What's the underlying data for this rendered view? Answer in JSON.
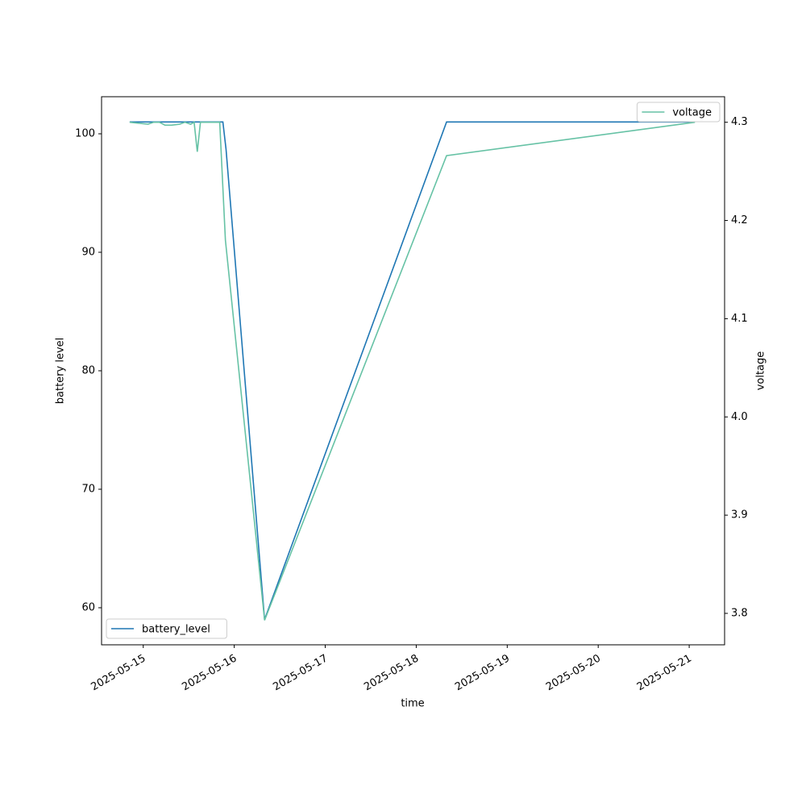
{
  "chart_data": {
    "type": "line",
    "x_label": "time",
    "y_label": "battery level",
    "y2_label": "voltage",
    "xlim": [
      "2025-05-14T13:00",
      "2025-05-21T09:20"
    ],
    "xticks": [
      "2025-05-15",
      "2025-05-16",
      "2025-05-17",
      "2025-05-18",
      "2025-05-19",
      "2025-05-20",
      "2025-05-21"
    ],
    "ylim": [
      56.87,
      103.13
    ],
    "yticks": [
      60,
      70,
      80,
      90,
      100
    ],
    "y2lim": [
      3.768,
      4.326
    ],
    "y2ticks": [
      3.8,
      3.9,
      {
        "value": 4,
        "label": "4.0"
      },
      4.1,
      4.2,
      4.3
    ],
    "series": [
      {
        "name": "battery_level",
        "color": "#1f77b4",
        "legend": "lower left",
        "x": [
          "2025-05-14T20:25",
          "2025-05-15T21:00",
          "2025-05-15T21:50",
          "2025-05-16T08:00",
          "2025-05-18T08:00",
          "2025-05-21T01:30"
        ],
        "values": [
          101,
          101,
          98.7,
          59,
          101,
          101
        ]
      },
      {
        "name": "voltage",
        "color": "#66c2a5",
        "axis": "y2",
        "legend": "upper right",
        "x": [
          "2025-05-14T20:25",
          "2025-05-15T01:15",
          "2025-05-15T02:45",
          "2025-05-15T04:15",
          "2025-05-15T05:45",
          "2025-05-15T07:25",
          "2025-05-15T09:35",
          "2025-05-15T11:00",
          "2025-05-15T12:30",
          "2025-05-15T13:25",
          "2025-05-15T14:15",
          "2025-05-15T15:05",
          "2025-05-15T20:10",
          "2025-05-15T21:40",
          "2025-05-16T08:00",
          "2025-05-18T08:00",
          "2025-05-21T01:30"
        ],
        "values": [
          4.3,
          4.298,
          4.3,
          4.3,
          4.297,
          4.297,
          4.298,
          4.3,
          4.298,
          4.3,
          4.27,
          4.3,
          4.3,
          4.18,
          3.793,
          4.266,
          4.3
        ]
      }
    ]
  }
}
